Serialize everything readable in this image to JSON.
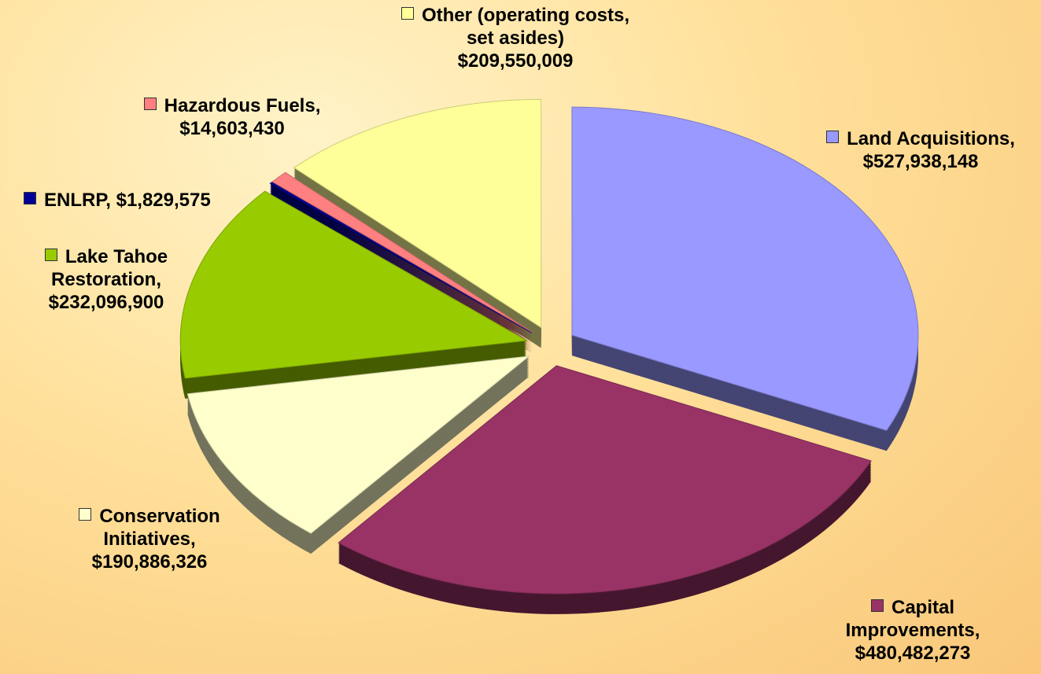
{
  "chart_data": {
    "type": "pie",
    "categories": [
      "Land Acquisitions,",
      "Capital Improvements,",
      "Conservation Initiatives,",
      "Lake Tahoe Restoration,",
      "ENLRP,",
      "Hazardous Fuels,",
      "Other (operating costs, set asides)"
    ],
    "values": [
      527938148,
      480482273,
      190886326,
      232096900,
      1829575,
      14603430,
      209550009
    ],
    "value_labels": [
      "$527,938,148",
      "$480,482,273",
      "$190,886,326",
      "$232,096,900",
      "$1,829,575",
      "$14,603,430",
      "$209,550,009"
    ],
    "colors": [
      "#9999ff",
      "#993366",
      "#ffffcc",
      "#99cc00",
      "#000099",
      "#ff8080",
      "#ffff99"
    ]
  }
}
